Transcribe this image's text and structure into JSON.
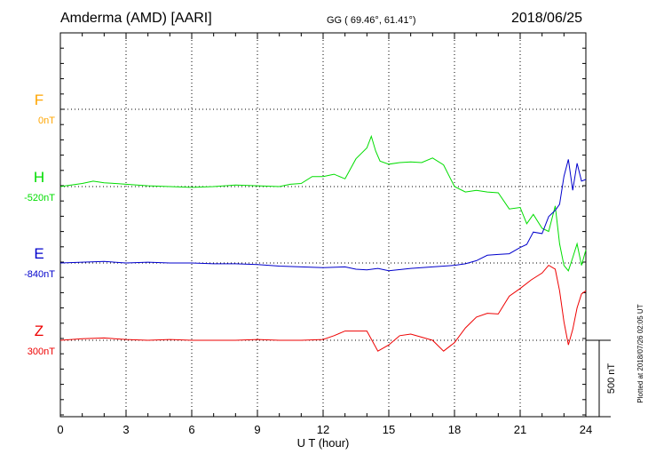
{
  "header": {
    "station": "Amderma (AMD)  [AARI]",
    "coords": "GG ( 69.46°,  61.41°)",
    "date": "2018/06/25"
  },
  "footer_note": "Plotted at 2018/07/26 02:05 UT",
  "scale_label": "500 nT",
  "chart_data": {
    "type": "line",
    "xlabel": "U T (hour)",
    "xlim": [
      0,
      24
    ],
    "x_ticks": [
      "0",
      "3",
      "6",
      "9",
      "12",
      "15",
      "18",
      "21",
      "24"
    ],
    "y_unit_per_division": 500,
    "grid": true,
    "series": [
      {
        "name": "F",
        "baseline": "0nT",
        "color": "#ffa500",
        "x": [],
        "y": []
      },
      {
        "name": "H",
        "baseline": "-520nT",
        "color": "#00dd00",
        "x": [
          0,
          0.5,
          1,
          1.5,
          2,
          2.5,
          3,
          4,
          5,
          6,
          7,
          8,
          9,
          10,
          10.5,
          11,
          11.5,
          12,
          12.5,
          13,
          13.5,
          14,
          14.2,
          14.4,
          14.6,
          15,
          15.5,
          16,
          16.5,
          17,
          17.5,
          18,
          18.5,
          19,
          19.5,
          20,
          20.5,
          21,
          21.3,
          21.6,
          22,
          22.3,
          22.6,
          22.8,
          23,
          23.2,
          23.4,
          23.6,
          23.8,
          24
        ],
        "y": [
          -520,
          -510,
          -500,
          -485,
          -495,
          -500,
          -505,
          -515,
          -520,
          -525,
          -520,
          -510,
          -515,
          -520,
          -505,
          -500,
          -455,
          -455,
          -440,
          -470,
          -340,
          -270,
          -195,
          -290,
          -355,
          -375,
          -365,
          -360,
          -365,
          -335,
          -380,
          -520,
          -555,
          -545,
          -555,
          -560,
          -665,
          -655,
          -760,
          -700,
          -790,
          -810,
          -645,
          -890,
          -1030,
          -1065,
          -980,
          -890,
          -1030,
          -930
        ]
      },
      {
        "name": "E",
        "baseline": "-840nT",
        "color": "#0000cc",
        "x": [
          0,
          1,
          2,
          3,
          4,
          5,
          6,
          7,
          8,
          9,
          10,
          11,
          12,
          13,
          13.5,
          14,
          14.5,
          15,
          16,
          17,
          18,
          18.5,
          19,
          19.5,
          20,
          20.5,
          21,
          21.3,
          21.6,
          22,
          22.3,
          22.6,
          22.8,
          23,
          23.2,
          23.4,
          23.6,
          23.8,
          24
        ],
        "y": [
          -840,
          -835,
          -830,
          -840,
          -835,
          -840,
          -840,
          -845,
          -845,
          -850,
          -860,
          -865,
          -870,
          -865,
          -880,
          -885,
          -875,
          -890,
          -875,
          -865,
          -855,
          -845,
          -825,
          -790,
          -785,
          -780,
          -740,
          -720,
          -640,
          -650,
          -540,
          -500,
          -460,
          -280,
          -170,
          -370,
          -195,
          -310,
          -300
        ]
      },
      {
        "name": "Z",
        "baseline": "300nT",
        "color": "#ee0000",
        "x": [
          0,
          1,
          2,
          3,
          4,
          5,
          6,
          7,
          8,
          9,
          10,
          11,
          12,
          12.5,
          13,
          14,
          14.5,
          15,
          15.5,
          16,
          16.5,
          17,
          17.5,
          18,
          18.5,
          19,
          19.5,
          20,
          20.5,
          21,
          21.5,
          22,
          22.3,
          22.6,
          22.8,
          23,
          23.2,
          23.4,
          23.6,
          23.8,
          24
        ],
        "y": [
          300,
          310,
          315,
          305,
          300,
          305,
          300,
          300,
          300,
          305,
          300,
          300,
          305,
          330,
          360,
          360,
          230,
          270,
          330,
          340,
          320,
          300,
          230,
          285,
          380,
          450,
          475,
          470,
          585,
          635,
          690,
          735,
          785,
          760,
          620,
          420,
          270,
          370,
          510,
          600,
          620
        ]
      }
    ]
  }
}
